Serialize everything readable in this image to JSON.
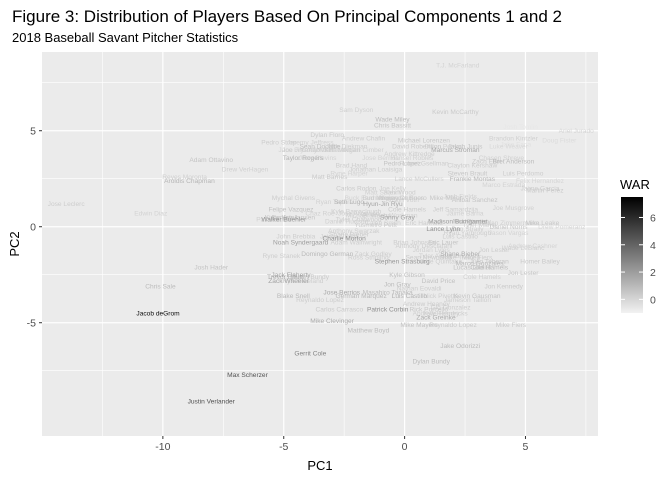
{
  "chart_data": {
    "type": "scatter",
    "title": "Figure 3: Distribution of Players Based On Principal Components 1 and 2",
    "subtitle": "2018 Baseball Savant Pitcher Statistics",
    "xlabel": "PC1",
    "ylabel": "PC2",
    "xlim": [
      -15.0,
      8.0
    ],
    "ylim": [
      -10.9,
      9.1
    ],
    "xticks": [
      -10,
      -5,
      0,
      5
    ],
    "yticks": [
      -5,
      0,
      5
    ],
    "grid": true,
    "panel_background": "#ebebeb",
    "gridline_color": "#ffffff",
    "legend": {
      "title": "WAR",
      "placement": "right",
      "ticks": [
        0,
        2,
        4,
        6
      ],
      "min": -1.0,
      "max": 7.5,
      "low_color": "#f2f2f2",
      "high_color": "#000000"
    },
    "points": [
      {
        "label": "T.J. McFarland",
        "x": 2.2,
        "y": 8.4,
        "war": 0.1
      },
      {
        "label": "Sam Dyson",
        "x": -2.0,
        "y": 6.1,
        "war": 0.2
      },
      {
        "label": "Kevin McCarthy",
        "x": 2.1,
        "y": 6.0,
        "war": 0.4
      },
      {
        "label": "Wade Miley",
        "x": -0.5,
        "y": 5.6,
        "war": 0.9
      },
      {
        "label": "Chris Bassitt",
        "x": -0.5,
        "y": 5.3,
        "war": 0.6
      },
      {
        "label": "Ariel Jurado",
        "x": 7.1,
        "y": 5.0,
        "war": 0.0
      },
      {
        "label": "Josh Tomlin",
        "x": 4.8,
        "y": 5.2,
        "war": -0.6
      },
      {
        "label": "Dylan Floro",
        "x": -3.2,
        "y": 4.8,
        "war": 0.4
      },
      {
        "label": "Andrew Chafin",
        "x": -1.7,
        "y": 4.6,
        "war": 0.3
      },
      {
        "label": "Michael Lorenzen",
        "x": 0.8,
        "y": 4.5,
        "war": 0.5
      },
      {
        "label": "Brandon Kintzler",
        "x": 4.5,
        "y": 4.6,
        "war": 0.2
      },
      {
        "label": "Jake Faria",
        "x": 4.6,
        "y": 4.3,
        "war": -0.4
      },
      {
        "label": "Doug Fister",
        "x": 6.4,
        "y": 4.5,
        "war": -0.2
      },
      {
        "label": "Pedro Strop",
        "x": -5.2,
        "y": 4.4,
        "war": 0.3
      },
      {
        "label": "Jeremy Jeffress",
        "x": -3.9,
        "y": 4.4,
        "war": 0.2
      },
      {
        "label": "Sean Doolittle",
        "x": -3.5,
        "y": 4.2,
        "war": 0.8
      },
      {
        "label": "Jake Diekman",
        "x": -2.4,
        "y": 4.2,
        "war": 0.3
      },
      {
        "label": "David Robertson",
        "x": 0.5,
        "y": 4.2,
        "war": 0.4
      },
      {
        "label": "Jakob Junis",
        "x": 2.5,
        "y": 4.2,
        "war": 0.6
      },
      {
        "label": "Dillon Peters",
        "x": 1.6,
        "y": 4.2,
        "war": 0.2
      },
      {
        "label": "Luke Weaver",
        "x": 4.3,
        "y": 4.2,
        "war": -0.1
      },
      {
        "label": "Jace Fry",
        "x": -4.7,
        "y": 4.0,
        "war": 0.1
      },
      {
        "label": "Joe Jimenez",
        "x": -4.3,
        "y": 4.0,
        "war": 0.3
      },
      {
        "label": "Josh Hader",
        "x": -3.1,
        "y": 4.0,
        "war": 0.1
      },
      {
        "label": "Adam Morgan",
        "x": -2.7,
        "y": 4.0,
        "war": 0.3
      },
      {
        "label": "Cody Allen",
        "x": -3.6,
        "y": 4.0,
        "war": 0.2
      },
      {
        "label": "Adam Cimber",
        "x": -1.7,
        "y": 4.0,
        "war": 0.2
      },
      {
        "label": "Andrew Kittredge",
        "x": 0.2,
        "y": 3.8,
        "war": 0.3
      },
      {
        "label": "Chasen Shreve",
        "x": 4.0,
        "y": 3.6,
        "war": 0.2
      },
      {
        "label": "Marcus Stroman",
        "x": 2.1,
        "y": 4.0,
        "war": 1.6
      },
      {
        "label": "Taylor Rogers",
        "x": -4.2,
        "y": 3.6,
        "war": 1.2
      },
      {
        "label": "Jerry Blevins",
        "x": -3.6,
        "y": 3.6,
        "war": 0.1
      },
      {
        "label": "Zach Eflin",
        "x": 3.4,
        "y": 3.4,
        "war": 0.4
      },
      {
        "label": "Bret Anderson",
        "x": 4.5,
        "y": 3.4,
        "war": 0.9
      },
      {
        "label": "Adam Ottavino",
        "x": -8.0,
        "y": 3.5,
        "war": 0.6
      },
      {
        "label": "Jose Berrios",
        "x": -1.0,
        "y": 3.6,
        "war": 0.1
      },
      {
        "label": "Hansel Robles",
        "x": 0.3,
        "y": 3.6,
        "war": 0.2
      },
      {
        "label": "Robert Gsellman",
        "x": 0.8,
        "y": 3.3,
        "war": 0.3
      },
      {
        "label": "Pedro Lopez",
        "x": -0.1,
        "y": 3.3,
        "war": 0.6
      },
      {
        "label": "Clayton Kershaw",
        "x": 2.8,
        "y": 3.2,
        "war": 0.3
      },
      {
        "label": "Drew VerHagen",
        "x": -6.6,
        "y": 3.0,
        "war": 0.2
      },
      {
        "label": "Brad Hand",
        "x": -2.2,
        "y": 3.2,
        "war": 0.3
      },
      {
        "label": "Jonathan Loaisiga",
        "x": -1.2,
        "y": 3.0,
        "war": 0.3
      },
      {
        "label": "Matt Barnes",
        "x": -3.1,
        "y": 2.6,
        "war": 0.4
      },
      {
        "label": "Ryne Harper",
        "x": -2.3,
        "y": 2.8,
        "war": 0.1
      },
      {
        "label": "Reyes Moronta",
        "x": -9.1,
        "y": 2.6,
        "war": 0.2
      },
      {
        "label": "Aroldis Chapman",
        "x": -8.9,
        "y": 2.4,
        "war": 1.1
      },
      {
        "label": "Steven Brault",
        "x": 2.6,
        "y": 2.8,
        "war": 0.5
      },
      {
        "label": "Luis Perdomo",
        "x": 4.9,
        "y": 2.8,
        "war": 0.3
      },
      {
        "label": "Frankie Montas",
        "x": 2.8,
        "y": 2.5,
        "war": 1.0
      },
      {
        "label": "Lance McCullers",
        "x": 0.6,
        "y": 2.5,
        "war": 0.2
      },
      {
        "label": "Marco Estrada",
        "x": 4.1,
        "y": 2.2,
        "war": 0.1
      },
      {
        "label": "Felix Hernandez",
        "x": 5.6,
        "y": 2.4,
        "war": 0.0
      },
      {
        "label": "Jaime Garcia",
        "x": 5.6,
        "y": 2.0,
        "war": 0.3
      },
      {
        "label": "Martin Perez",
        "x": 5.8,
        "y": 1.9,
        "war": 0.4
      },
      {
        "label": "Carlos Rodon",
        "x": -2.0,
        "y": 2.0,
        "war": 0.4
      },
      {
        "label": "Joe Kelly",
        "x": -0.5,
        "y": 2.0,
        "war": 0.2
      },
      {
        "label": "Hyun-Jin Ryu",
        "x": -0.9,
        "y": 1.2,
        "war": 1.7
      },
      {
        "label": "Alex Wood",
        "x": -0.2,
        "y": 1.8,
        "war": 0.3
      },
      {
        "label": "Matt Strahm",
        "x": -0.9,
        "y": 1.8,
        "war": 0.2
      },
      {
        "label": "Alexander Suero",
        "x": -0.1,
        "y": 1.5,
        "war": 0.4
      },
      {
        "label": "Josh Fields",
        "x": 2.3,
        "y": 1.6,
        "war": 0.2
      },
      {
        "label": "Mychal Givens",
        "x": -4.6,
        "y": 1.5,
        "war": 0.3
      },
      {
        "label": "Bud Norris",
        "x": -1.1,
        "y": 1.5,
        "war": 0.4
      },
      {
        "label": "Austin Voth",
        "x": -0.1,
        "y": 1.4,
        "war": 0.2
      },
      {
        "label": "Ryan Tepera",
        "x": -2.9,
        "y": 1.3,
        "war": 0.2
      },
      {
        "label": "Buck Farmer",
        "x": -1.7,
        "y": 1.5,
        "war": 0.1
      },
      {
        "label": "Yonny Chirinos",
        "x": -0.1,
        "y": 1.5,
        "war": 0.4
      },
      {
        "label": "Mike Minor",
        "x": 1.7,
        "y": 1.5,
        "war": 0.5
      },
      {
        "label": "Anibal Sanchez",
        "x": 2.9,
        "y": 1.4,
        "war": 0.6
      },
      {
        "label": "Edwin Diaz",
        "x": -10.5,
        "y": 0.7,
        "war": 0.1
      },
      {
        "label": "Jose Leclerc",
        "x": -14.0,
        "y": 1.2,
        "war": 0.3
      },
      {
        "label": "Seth Lugo",
        "x": -2.3,
        "y": 1.3,
        "war": 1.2
      },
      {
        "label": "Felipe Vazquez",
        "x": -4.7,
        "y": 0.9,
        "war": 0.7
      },
      {
        "label": "Kyle Barraclough",
        "x": -2.0,
        "y": 0.8,
        "war": 0.3
      },
      {
        "label": "Kirby Yates",
        "x": -5.1,
        "y": 0.5,
        "war": 0.7
      },
      {
        "label": "Kenley Jansen",
        "x": -4.6,
        "y": 0.5,
        "war": 0.6
      },
      {
        "label": "Jeff Samardzija",
        "x": 2.1,
        "y": 0.9,
        "war": 0.3
      },
      {
        "label": "Jaime Barria",
        "x": 2.5,
        "y": 0.7,
        "war": 0.2
      },
      {
        "label": "Cole Hamels",
        "x": 0.1,
        "y": 0.9,
        "war": 0.4
      },
      {
        "label": "Pat Venditte",
        "x": -5.4,
        "y": 0.4,
        "war": 0.2
      },
      {
        "label": "Walker Buehler",
        "x": -5.0,
        "y": 0.4,
        "war": 2.2
      },
      {
        "label": "Chaz Roe",
        "x": -3.5,
        "y": 0.7,
        "war": 0.2
      },
      {
        "label": "Jose Alvarado",
        "x": -1.9,
        "y": 0.7,
        "war": 0.2
      },
      {
        "label": "Michael Wacha",
        "x": -1.5,
        "y": 0.6,
        "war": 0.3
      },
      {
        "label": "Brandon Workman",
        "x": -0.6,
        "y": 0.6,
        "war": 0.2
      },
      {
        "label": "Sonny Gray",
        "x": -0.3,
        "y": 0.5,
        "war": 1.8
      },
      {
        "label": "Tyler Chatwood",
        "x": -1.9,
        "y": 0.4,
        "war": 0.3
      },
      {
        "label": "Daniel Hudson",
        "x": -2.4,
        "y": 0.3,
        "war": 0.2
      },
      {
        "label": "Ian Kennedy",
        "x": 2.8,
        "y": 0.3,
        "war": 0.3
      },
      {
        "label": "Tyler Mahle",
        "x": 3.1,
        "y": 0.1,
        "war": 0.2
      },
      {
        "label": "Dan Straily",
        "x": 2.6,
        "y": -0.1,
        "war": 0.3
      },
      {
        "label": "Madison Bumgarner",
        "x": 2.2,
        "y": 0.3,
        "war": 2.0
      },
      {
        "label": "Caleb Smith",
        "x": -0.9,
        "y": 0.2,
        "war": 0.2
      },
      {
        "label": "Joe Musgrove",
        "x": 4.5,
        "y": 1.0,
        "war": 0.2
      },
      {
        "label": "Drew Pomeranz",
        "x": 6.5,
        "y": 0.0,
        "war": 0.0
      },
      {
        "label": "Daniel Norris",
        "x": 4.3,
        "y": 0.0,
        "war": 0.5
      },
      {
        "label": "Lance Lynn",
        "x": 1.6,
        "y": -0.1,
        "war": 2.4
      },
      {
        "label": "Jordan Zimmermann",
        "x": 4.3,
        "y": 0.2,
        "war": 0.2
      },
      {
        "label": "Nick Pivetta",
        "x": 2.7,
        "y": 0.3,
        "war": 0.5
      },
      {
        "label": "Eric Hanhold",
        "x": 0.8,
        "y": 0.2,
        "war": 0.3
      },
      {
        "label": "Jason Vargas",
        "x": 4.3,
        "y": -0.3,
        "war": 0.1
      },
      {
        "label": "Ryan Yarbrough",
        "x": 2.6,
        "y": -0.3,
        "war": 0.3
      },
      {
        "label": "Mike Leake",
        "x": 5.7,
        "y": 0.2,
        "war": 0.5
      },
      {
        "label": "Yusmeiro Petit",
        "x": -1.2,
        "y": 0.1,
        "war": 0.4
      },
      {
        "label": "Anthony Swarzak",
        "x": -2.1,
        "y": -0.2,
        "war": 0.3
      },
      {
        "label": "Luis Castillo",
        "x": 2.3,
        "y": -0.5,
        "war": 0.3
      },
      {
        "label": "Shane Bieber",
        "x": -2.3,
        "y": -0.4,
        "war": 0.4
      },
      {
        "label": "Jaime Garcia",
        "x": -2.7,
        "y": -0.5,
        "war": 0.2
      },
      {
        "label": "John Brebbia",
        "x": -4.5,
        "y": -0.5,
        "war": 0.3
      },
      {
        "label": "Charlie Morton",
        "x": -2.5,
        "y": -0.6,
        "war": 2.4
      },
      {
        "label": "Noah Syndergaard",
        "x": -4.3,
        "y": -0.8,
        "war": 2.0
      },
      {
        "label": "Adam Wainwright",
        "x": -2.0,
        "y": -0.8,
        "war": 0.3
      },
      {
        "label": "Brian Johnson",
        "x": 0.4,
        "y": -0.8,
        "war": 0.3
      },
      {
        "label": "Eric Lauer",
        "x": 1.6,
        "y": -0.8,
        "war": 0.6
      },
      {
        "label": "Anthony Desclafani",
        "x": 0.8,
        "y": -1.0,
        "war": 0.3
      },
      {
        "label": "Jordan Lyles",
        "x": 1.1,
        "y": -1.2,
        "war": 0.2
      },
      {
        "label": "Jon Lester",
        "x": 3.7,
        "y": -1.2,
        "war": 0.3
      },
      {
        "label": "Wade LeBlanc",
        "x": 4.9,
        "y": -1.1,
        "war": 0.2
      },
      {
        "label": "Andrew Cashner",
        "x": 5.3,
        "y": -1.0,
        "war": 0.1
      },
      {
        "label": "Ryne Stanek",
        "x": -5.1,
        "y": -1.5,
        "war": 0.3
      },
      {
        "label": "Domingo German",
        "x": -3.2,
        "y": -1.4,
        "war": 1.0
      },
      {
        "label": "Zack Godley",
        "x": -1.3,
        "y": -1.4,
        "war": 0.3
      },
      {
        "label": "Ross Stripling",
        "x": -1.5,
        "y": -1.6,
        "war": 0.3
      },
      {
        "label": "Sean Newcomb",
        "x": 1.0,
        "y": -1.6,
        "war": 0.4
      },
      {
        "label": "Shane Bieber",
        "x": 2.3,
        "y": -1.4,
        "war": 1.5
      },
      {
        "label": "Blake Treinen",
        "x": 2.3,
        "y": -1.6,
        "war": 0.3
      },
      {
        "label": "Mike Fiers",
        "x": 3.0,
        "y": -1.6,
        "war": 0.3
      },
      {
        "label": "Marco Gonzales",
        "x": 3.1,
        "y": -1.9,
        "war": 1.0
      },
      {
        "label": "Stephen Strasburg",
        "x": -0.1,
        "y": -1.8,
        "war": 2.2
      },
      {
        "label": "Jose Quintana",
        "x": 1.5,
        "y": -1.8,
        "war": 0.3
      },
      {
        "label": "Homer Bailey",
        "x": 5.6,
        "y": -1.8,
        "war": 0.4
      },
      {
        "label": "Julio Teheran",
        "x": 3.5,
        "y": -1.8,
        "war": 0.6
      },
      {
        "label": "Tyler Anderson",
        "x": 1.5,
        "y": -1.5,
        "war": 0.3
      },
      {
        "label": "Cole Hamels",
        "x": 3.5,
        "y": -2.1,
        "war": 0.9
      },
      {
        "label": "Josh Hader",
        "x": -8.0,
        "y": -2.1,
        "war": 0.6
      },
      {
        "label": "Lucas Giolito",
        "x": 2.8,
        "y": -2.1,
        "war": 0.7
      },
      {
        "label": "Jon Lester",
        "x": 4.9,
        "y": -2.4,
        "war": 0.5
      },
      {
        "label": "Jack Flaherty",
        "x": -4.7,
        "y": -2.5,
        "war": 1.9
      },
      {
        "label": "Kyle Gibson",
        "x": 0.1,
        "y": -2.5,
        "war": 0.8
      },
      {
        "label": "Trevor Bauer",
        "x": -4.9,
        "y": -2.6,
        "war": 1.2
      },
      {
        "label": "Dylan Bundy",
        "x": -3.9,
        "y": -2.6,
        "war": 0.4
      },
      {
        "label": "Cole Hamels",
        "x": 3.2,
        "y": -2.6,
        "war": 0.2
      },
      {
        "label": "Kyle Freeland",
        "x": -4.2,
        "y": -2.8,
        "war": 0.3
      },
      {
        "label": "Zack Wheeler",
        "x": -4.8,
        "y": -2.8,
        "war": 1.8
      },
      {
        "label": "David Price",
        "x": 1.4,
        "y": -2.8,
        "war": 0.7
      },
      {
        "label": "Chris Sale",
        "x": -10.1,
        "y": -3.1,
        "war": 0.9
      },
      {
        "label": "Jose Berrios",
        "x": -2.6,
        "y": -3.4,
        "war": 1.6
      },
      {
        "label": "Jon Gray",
        "x": -0.3,
        "y": -3.0,
        "war": 0.9
      },
      {
        "label": "Nathan Eovaldi",
        "x": 0.6,
        "y": -3.2,
        "war": 0.3
      },
      {
        "label": "Masahiro Tanaka",
        "x": -0.7,
        "y": -3.4,
        "war": 0.9
      },
      {
        "label": "Jon Kennedy",
        "x": 4.1,
        "y": -3.1,
        "war": 0.4
      },
      {
        "label": "Kevin Gausman",
        "x": 3.0,
        "y": -3.6,
        "war": 0.6
      },
      {
        "label": "Blake Snell",
        "x": -4.6,
        "y": -3.6,
        "war": 1.0
      },
      {
        "label": "German Marquez",
        "x": -1.8,
        "y": -3.6,
        "war": 1.0
      },
      {
        "label": "Luis Castillo",
        "x": 0.2,
        "y": -3.6,
        "war": 1.2
      },
      {
        "label": "Nick Pivetta",
        "x": 1.5,
        "y": -3.6,
        "war": 0.3
      },
      {
        "label": "Reynaldo Lopez",
        "x": -3.5,
        "y": -3.8,
        "war": 0.3
      },
      {
        "label": "Andrew Heaney",
        "x": 0.9,
        "y": -4.0,
        "war": 0.4
      },
      {
        "label": "Jameson Taillon",
        "x": 2.6,
        "y": -3.8,
        "war": 0.3
      },
      {
        "label": "Jacob deGrom",
        "x": -10.2,
        "y": -4.5,
        "war": 7.2
      },
      {
        "label": "Carlos Carrasco",
        "x": -2.7,
        "y": -4.3,
        "war": 0.4
      },
      {
        "label": "Patrick Corbin",
        "x": -0.7,
        "y": -4.3,
        "war": 2.5
      },
      {
        "label": "Rick Porcello",
        "x": 1.0,
        "y": -4.3,
        "war": 0.5
      },
      {
        "label": "Kyle Hendricks",
        "x": 1.7,
        "y": -4.5,
        "war": 0.3
      },
      {
        "label": "Andrew Heaney",
        "x": 1.3,
        "y": -4.5,
        "war": 0.2
      },
      {
        "label": "Gio Gonzalez",
        "x": 1.9,
        "y": -4.2,
        "war": 0.3
      },
      {
        "label": "Mike Clevinger",
        "x": -3.0,
        "y": -4.9,
        "war": 1.5
      },
      {
        "label": "Zack Greinke",
        "x": 1.3,
        "y": -4.7,
        "war": 1.5
      },
      {
        "label": "Reynaldo Lopez",
        "x": 2.0,
        "y": -5.1,
        "war": 0.4
      },
      {
        "label": "Mike Fiers",
        "x": 4.4,
        "y": -5.1,
        "war": 0.4
      },
      {
        "label": "Mike Mayers",
        "x": 0.6,
        "y": -5.1,
        "war": 0.7
      },
      {
        "label": "Matthew Boyd",
        "x": -1.5,
        "y": -5.4,
        "war": 0.9
      },
      {
        "label": "Jake Odorizzi",
        "x": 2.3,
        "y": -6.2,
        "war": 0.9
      },
      {
        "label": "Gerrit Cole",
        "x": -3.9,
        "y": -6.6,
        "war": 2.9
      },
      {
        "label": "Dylan Bundy",
        "x": 1.1,
        "y": -7.0,
        "war": 0.9
      },
      {
        "label": "Max Scherzer",
        "x": -6.5,
        "y": -7.7,
        "war": 4.6
      },
      {
        "label": "Justin Verlander",
        "x": -8.0,
        "y": -9.1,
        "war": 4.7
      }
    ]
  }
}
